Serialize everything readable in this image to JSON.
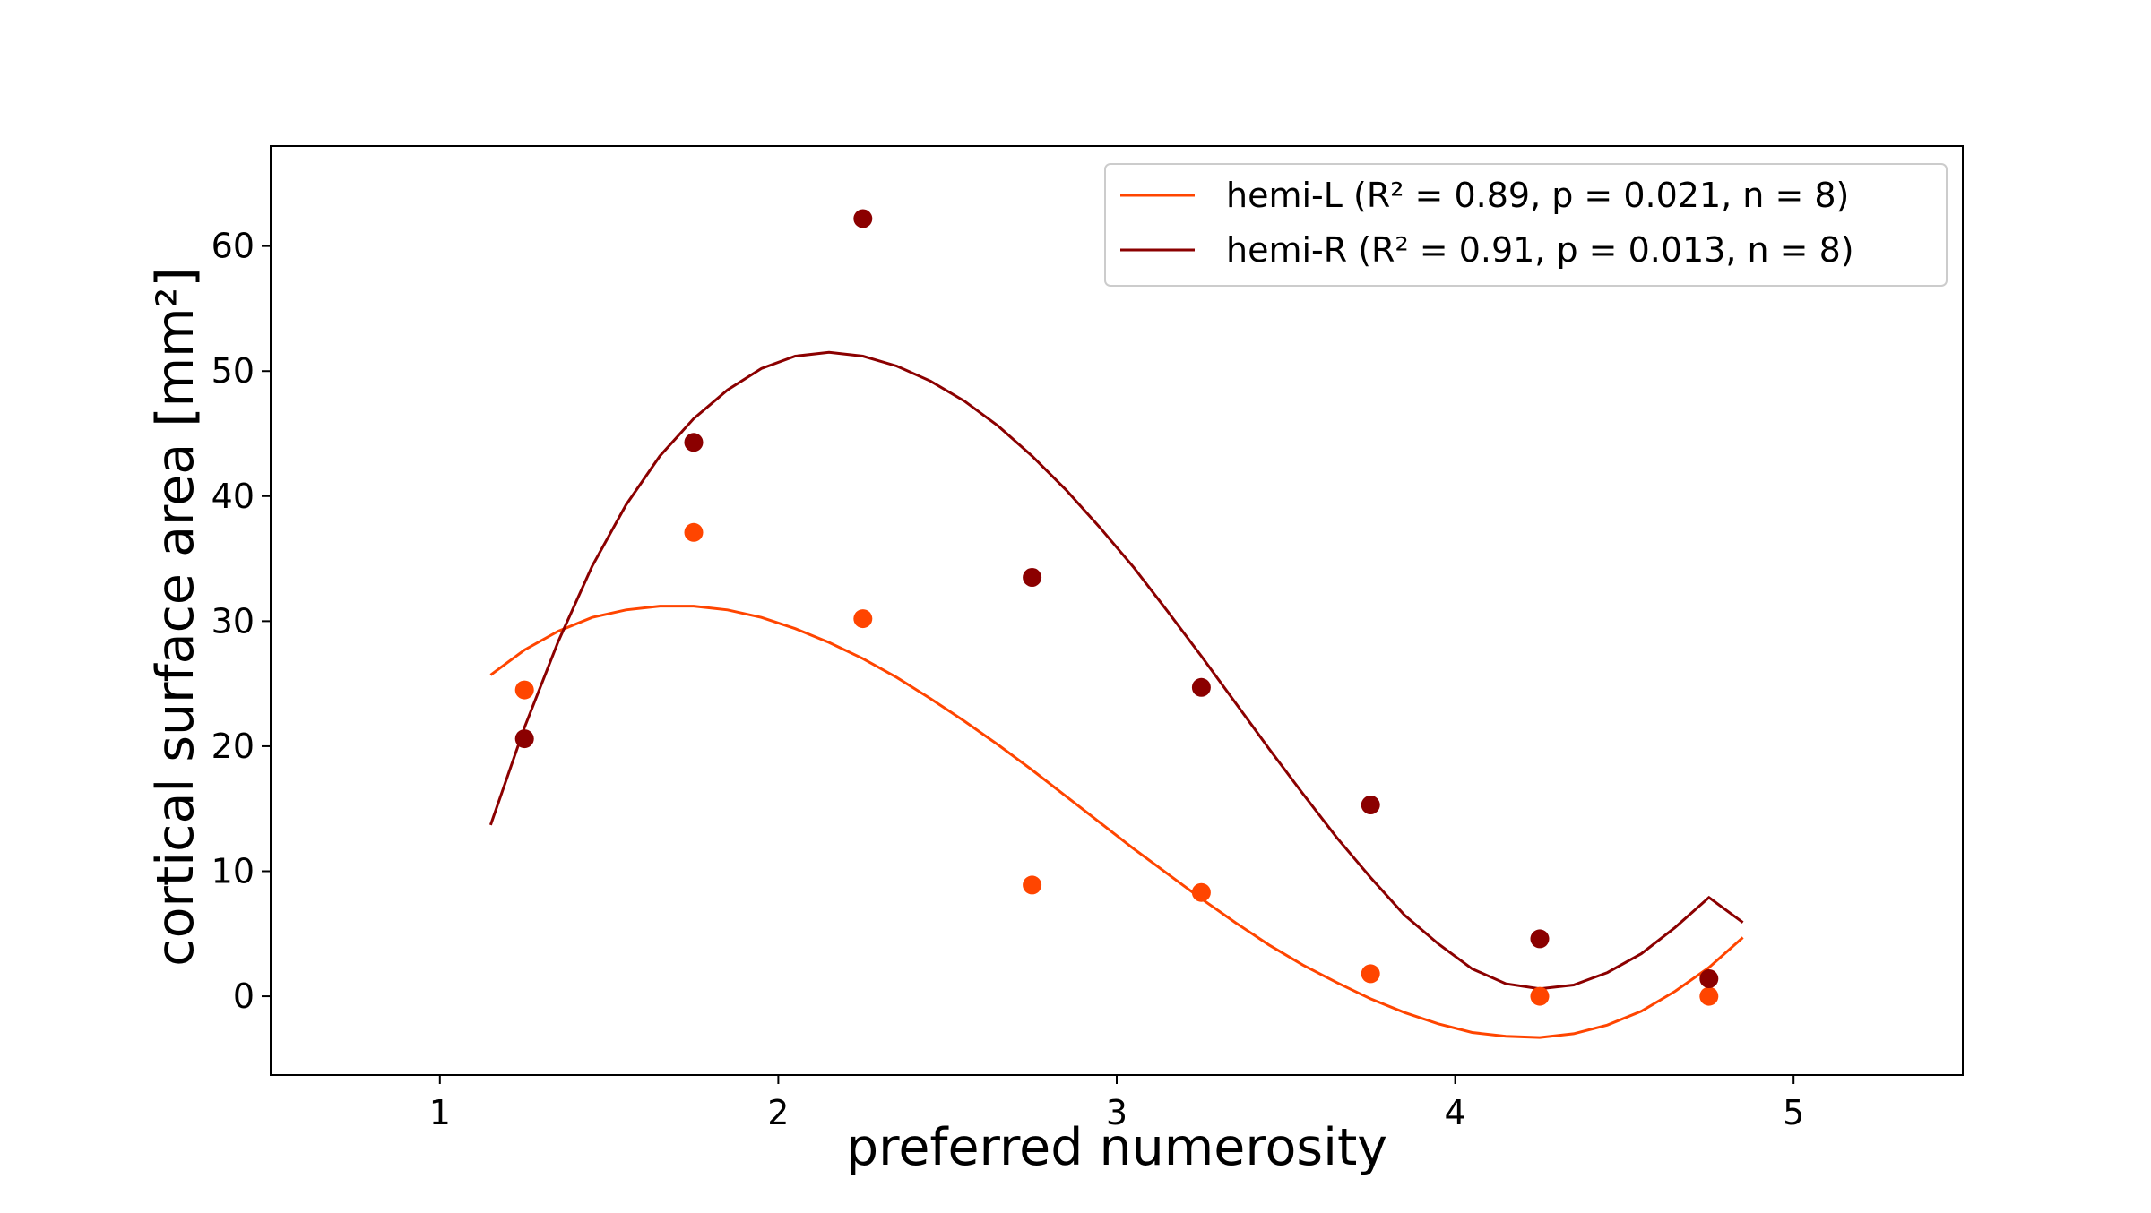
{
  "chart_data": {
    "type": "scatter",
    "title": "",
    "xlabel": "preferred numerosity",
    "ylabel": "cortical surface area [mm²]",
    "xlim": [
      0.5,
      5.5
    ],
    "ylim": [
      -6.3,
      68
    ],
    "xticks": [
      1,
      2,
      3,
      4,
      5
    ],
    "yticks": [
      0,
      10,
      20,
      30,
      40,
      50,
      60
    ],
    "grid": false,
    "legend_position": "upper right",
    "series": [
      {
        "name": "hemi-L",
        "legend_label": "hemi-L (R² = 0.89, p = 0.021, n = 8)",
        "color": "#ff4500",
        "points": {
          "x": [
            1.25,
            1.75,
            2.25,
            2.75,
            3.25,
            3.75,
            4.25,
            4.75
          ],
          "y": [
            24.5,
            37.1,
            30.2,
            8.9,
            8.3,
            1.8,
            0.0,
            0.0
          ]
        },
        "fit": {
          "x": [
            1.15,
            1.25,
            1.35,
            1.45,
            1.55,
            1.65,
            1.75,
            1.85,
            1.95,
            2.05,
            2.15,
            2.25,
            2.35,
            2.45,
            2.55,
            2.65,
            2.75,
            2.85,
            2.95,
            3.05,
            3.15,
            3.25,
            3.35,
            3.45,
            3.55,
            3.65,
            3.75,
            3.85,
            3.95,
            4.05,
            4.15,
            4.25,
            4.35,
            4.45,
            4.55,
            4.65,
            4.75,
            4.85
          ],
          "y": [
            25.7,
            27.7,
            29.2,
            30.3,
            30.9,
            31.2,
            31.2,
            30.9,
            30.3,
            29.4,
            28.3,
            27.0,
            25.5,
            23.8,
            22.0,
            20.1,
            18.1,
            16.0,
            13.9,
            11.8,
            9.8,
            7.8,
            5.9,
            4.1,
            2.5,
            1.1,
            -0.2,
            -1.3,
            -2.2,
            -2.9,
            -3.2,
            -3.3,
            -3.0,
            -2.3,
            -1.2,
            0.4,
            2.3,
            4.7
          ]
        }
      },
      {
        "name": "hemi-R",
        "legend_label": "hemi-R (R² = 0.91, p = 0.013, n = 8)",
        "color": "#8b0000",
        "points": {
          "x": [
            1.25,
            1.75,
            2.25,
            2.75,
            3.25,
            3.75,
            4.25,
            4.75
          ],
          "y": [
            20.6,
            44.3,
            62.2,
            33.5,
            24.7,
            15.3,
            4.6,
            1.4
          ]
        },
        "fit": {
          "x": [
            1.15,
            1.25,
            1.35,
            1.45,
            1.55,
            1.65,
            1.75,
            1.85,
            1.95,
            2.05,
            2.15,
            2.25,
            2.35,
            2.45,
            2.55,
            2.65,
            2.75,
            2.85,
            2.95,
            3.05,
            3.15,
            3.25,
            3.35,
            3.45,
            3.55,
            3.65,
            3.75,
            3.85,
            3.95,
            4.05,
            4.15,
            4.25,
            4.35,
            4.45,
            4.55,
            4.65,
            4.75,
            4.85
          ],
          "y": [
            13.7,
            21.5,
            28.4,
            34.4,
            39.3,
            43.2,
            46.2,
            48.5,
            50.2,
            51.2,
            51.5,
            51.2,
            50.4,
            49.2,
            47.6,
            45.6,
            43.2,
            40.5,
            37.5,
            34.3,
            30.8,
            27.2,
            23.5,
            19.8,
            16.2,
            12.7,
            9.5,
            6.5,
            4.2,
            2.2,
            1.0,
            0.6,
            0.9,
            1.9,
            3.4,
            5.5,
            7.9,
            5.9
          ]
        }
      }
    ]
  }
}
